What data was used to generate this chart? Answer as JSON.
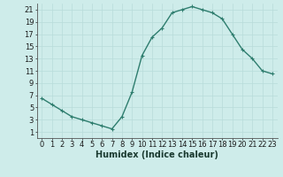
{
  "x": [
    0,
    1,
    2,
    3,
    4,
    5,
    6,
    7,
    8,
    9,
    10,
    11,
    12,
    13,
    14,
    15,
    16,
    17,
    18,
    19,
    20,
    21,
    22,
    23
  ],
  "y": [
    6.5,
    5.5,
    4.5,
    3.5,
    3.0,
    2.5,
    2.0,
    1.5,
    3.5,
    7.5,
    13.5,
    16.5,
    18.0,
    20.5,
    21.0,
    21.5,
    21.0,
    20.5,
    19.5,
    17.0,
    14.5,
    13.0,
    11.0,
    10.5
  ],
  "line_color": "#2e7d6e",
  "marker": "+",
  "markersize": 3,
  "linewidth": 1.0,
  "background_color": "#ceecea",
  "grid_color": "#b8dcda",
  "xlabel": "Humidex (Indice chaleur)",
  "xlabel_fontsize": 7,
  "tick_fontsize": 6,
  "xlim": [
    -0.5,
    23.5
  ],
  "ylim": [
    0,
    22
  ],
  "yticks": [
    1,
    3,
    5,
    7,
    9,
    11,
    13,
    15,
    17,
    19,
    21
  ],
  "xticks": [
    0,
    1,
    2,
    3,
    4,
    5,
    6,
    7,
    8,
    9,
    10,
    11,
    12,
    13,
    14,
    15,
    16,
    17,
    18,
    19,
    20,
    21,
    22,
    23
  ]
}
